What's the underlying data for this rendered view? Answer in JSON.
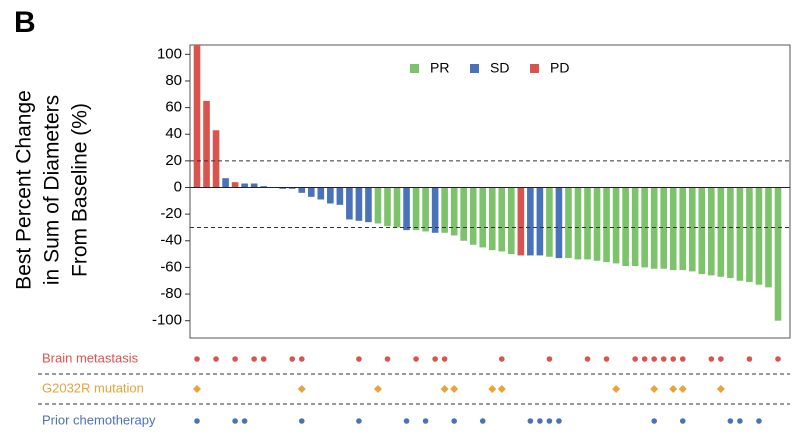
{
  "chart_data": {
    "type": "waterfall",
    "panel_label": "B",
    "ylabel": [
      "Best Percent Change",
      "in Sum of Diameters",
      "From Baseline (%)"
    ],
    "ylim": [
      -113,
      107
    ],
    "yticks": [
      100,
      80,
      60,
      40,
      20,
      0,
      -20,
      -40,
      -60,
      -80,
      -100
    ],
    "reference_lines": [
      20,
      -30
    ],
    "legend_position": "top center",
    "series": [
      {
        "name": "PR",
        "color": "#7dc36b",
        "values": [
          null,
          null,
          null,
          null,
          null,
          null,
          null,
          null,
          null,
          null,
          null,
          null,
          null,
          null,
          null,
          null,
          null,
          null,
          null,
          -27,
          -29,
          -30,
          null,
          -32,
          -33,
          null,
          -34,
          -36,
          -40,
          -43,
          -45,
          -47,
          -48,
          -50,
          null,
          null,
          null,
          -52,
          null,
          -53,
          -54,
          -54,
          -55,
          -56,
          -57,
          -59,
          -59,
          -60,
          -61,
          -61,
          -62,
          -62,
          -63,
          -65,
          -66,
          -67,
          -68,
          -70,
          -71,
          -73,
          -75,
          -100
        ]
      },
      {
        "name": "SD",
        "color": "#4a72b8",
        "values": [
          null,
          null,
          null,
          7,
          null,
          3,
          3,
          1,
          0,
          -1,
          -1,
          -4,
          -7,
          -9,
          -12,
          -13,
          -24,
          -25,
          -26,
          null,
          null,
          null,
          -32,
          null,
          null,
          -34,
          null,
          null,
          null,
          null,
          null,
          null,
          null,
          null,
          null,
          -51,
          -51,
          null,
          -53,
          null,
          null,
          null,
          null,
          null,
          null,
          null,
          null,
          null,
          null,
          null,
          null,
          null,
          null,
          null,
          null,
          null,
          null,
          null,
          null,
          null,
          null,
          null
        ]
      },
      {
        "name": "PD",
        "color": "#d9534f",
        "values": [
          107,
          65,
          43,
          null,
          4,
          null,
          null,
          null,
          null,
          null,
          null,
          null,
          null,
          null,
          null,
          null,
          null,
          null,
          null,
          null,
          null,
          null,
          null,
          null,
          null,
          null,
          null,
          null,
          null,
          null,
          null,
          null,
          null,
          null,
          -51,
          null,
          null,
          null,
          null,
          null,
          null,
          null,
          null,
          null,
          null,
          null,
          null,
          null,
          null,
          null,
          null,
          null,
          null,
          null,
          null,
          null,
          null,
          null,
          null,
          null,
          null,
          null
        ]
      }
    ],
    "tracks": [
      {
        "name": "Brain metastasis",
        "color": "#d9534f",
        "marker": "circle",
        "patients": [
          0,
          2,
          4,
          6,
          7,
          10,
          11,
          17,
          20,
          23,
          25,
          26,
          32,
          37,
          41,
          43,
          46,
          47,
          48,
          49,
          50,
          51,
          54,
          55,
          58,
          61
        ]
      },
      {
        "name": "G2032R mutation",
        "color": "#e8a33a",
        "marker": "diamond",
        "patients": [
          0,
          11,
          19,
          26,
          27,
          31,
          32,
          44,
          48,
          50,
          51,
          55
        ]
      },
      {
        "name": "Prior chemotherapy",
        "color": "#4a72b8",
        "marker": "circle",
        "patients": [
          0,
          4,
          5,
          11,
          17,
          22,
          24,
          27,
          30,
          35,
          36,
          37,
          38,
          48,
          51,
          56,
          57,
          59
        ]
      }
    ]
  }
}
